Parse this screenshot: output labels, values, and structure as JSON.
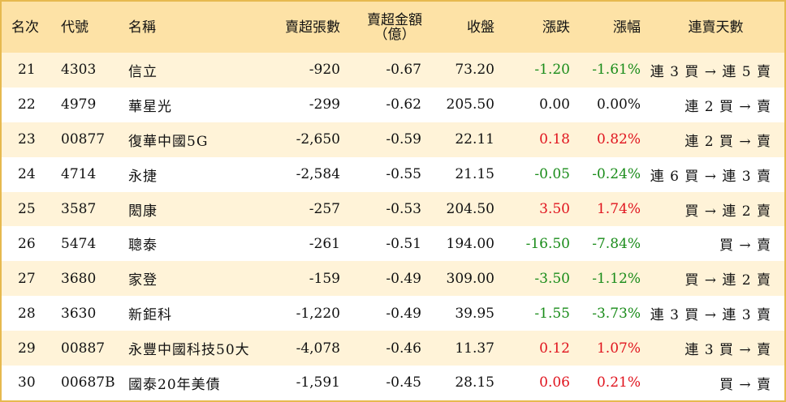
{
  "headers": {
    "rank": "名次",
    "code": "代號",
    "name": "名稱",
    "sell_volume": "賣超張數",
    "sell_amount_line1": "賣超金額",
    "sell_amount_line2": "（億）",
    "close": "收盤",
    "change": "漲跌",
    "change_pct": "漲幅",
    "streak": "連賣天數"
  },
  "rows": [
    {
      "rank": "21",
      "code": "4303",
      "name": "信立",
      "volume": "-920",
      "amount": "-0.67",
      "close": "73.20",
      "change": "-1.20",
      "pct": "-1.61%",
      "streak": "連 3 買 → 連 5 賣",
      "trend": "down"
    },
    {
      "rank": "22",
      "code": "4979",
      "name": "華星光",
      "volume": "-299",
      "amount": "-0.62",
      "close": "205.50",
      "change": "0.00",
      "pct": "0.00%",
      "streak": "連 2 買 → 賣",
      "trend": "flat"
    },
    {
      "rank": "23",
      "code": "00877",
      "name": "復華中國5G",
      "volume": "-2,650",
      "amount": "-0.59",
      "close": "22.11",
      "change": "0.18",
      "pct": "0.82%",
      "streak": "連 2 買 → 賣",
      "trend": "up"
    },
    {
      "rank": "24",
      "code": "4714",
      "name": "永捷",
      "volume": "-2,584",
      "amount": "-0.55",
      "close": "21.15",
      "change": "-0.05",
      "pct": "-0.24%",
      "streak": "連 6 買 → 連 3 賣",
      "trend": "down"
    },
    {
      "rank": "25",
      "code": "3587",
      "name": "閎康",
      "volume": "-257",
      "amount": "-0.53",
      "close": "204.50",
      "change": "3.50",
      "pct": "1.74%",
      "streak": "買 → 連 2 賣",
      "trend": "up"
    },
    {
      "rank": "26",
      "code": "5474",
      "name": "聰泰",
      "volume": "-261",
      "amount": "-0.51",
      "close": "194.00",
      "change": "-16.50",
      "pct": "-7.84%",
      "streak": "買 → 賣",
      "trend": "down"
    },
    {
      "rank": "27",
      "code": "3680",
      "name": "家登",
      "volume": "-159",
      "amount": "-0.49",
      "close": "309.00",
      "change": "-3.50",
      "pct": "-1.12%",
      "streak": "買 → 連 2 賣",
      "trend": "down"
    },
    {
      "rank": "28",
      "code": "3630",
      "name": "新鉅科",
      "volume": "-1,220",
      "amount": "-0.49",
      "close": "39.95",
      "change": "-1.55",
      "pct": "-3.73%",
      "streak": "連 3 買 → 連 3 賣",
      "trend": "down"
    },
    {
      "rank": "29",
      "code": "00887",
      "name": "永豐中國科技50大",
      "volume": "-4,078",
      "amount": "-0.46",
      "close": "11.37",
      "change": "0.12",
      "pct": "1.07%",
      "streak": "連 3 買 → 賣",
      "trend": "up"
    },
    {
      "rank": "30",
      "code": "00687B",
      "name": "國泰20年美債",
      "volume": "-1,591",
      "amount": "-0.45",
      "close": "28.15",
      "change": "0.06",
      "pct": "0.21%",
      "streak": "買 → 賣",
      "trend": "up"
    }
  ],
  "colors": {
    "header_bg": "#fde2a6",
    "odd_row_bg": "#fff3d8",
    "border": "#e6b94f",
    "up": "#e0141e",
    "down": "#1a8c1a"
  }
}
